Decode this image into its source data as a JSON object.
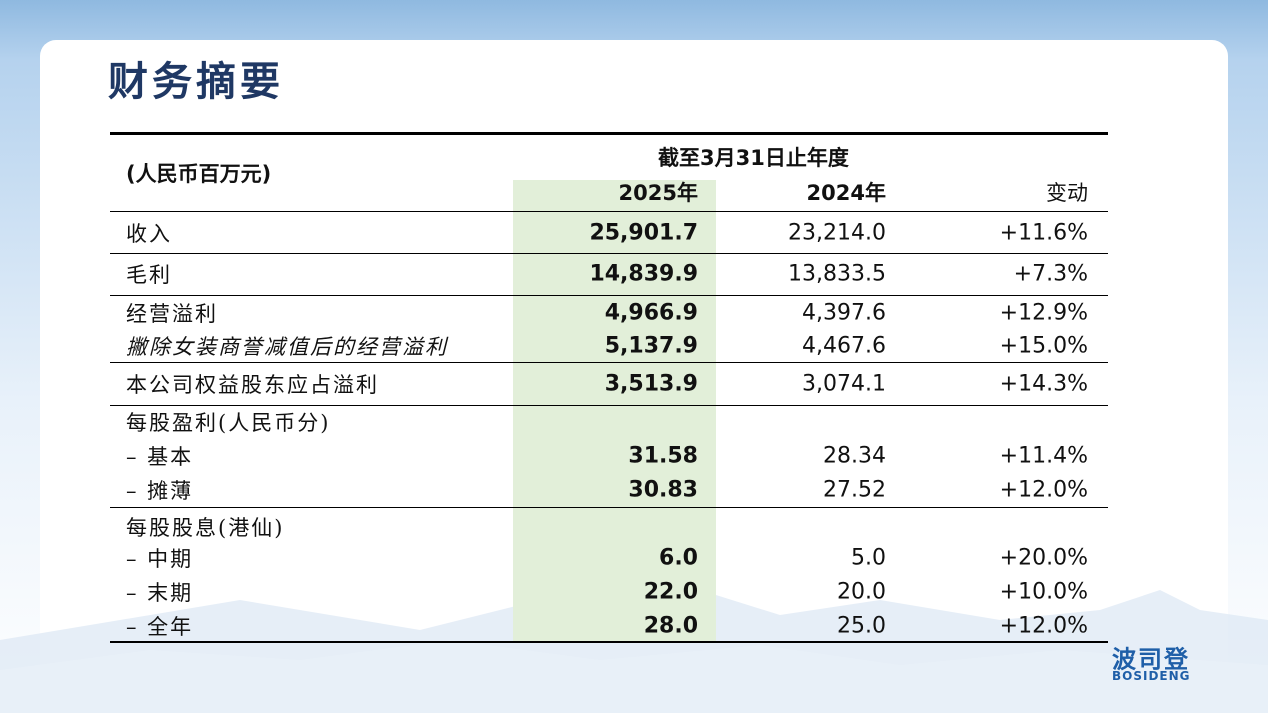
{
  "header": {
    "title": "财务摘要"
  },
  "table": {
    "unit": "(人民币百万元)",
    "period": "截至3月31日止年度",
    "columns": [
      "2025年",
      "2024年",
      "变动"
    ],
    "groups": [
      {
        "rows": [
          {
            "label": "收入",
            "values": [
              "25,901.7",
              "23,214.0",
              "+11.6%"
            ]
          }
        ]
      },
      {
        "rows": [
          {
            "label": "毛利",
            "values": [
              "14,839.9",
              "13,833.5",
              "+7.3%"
            ]
          }
        ]
      },
      {
        "rows": [
          {
            "label": "经营溢利",
            "values": [
              "4,966.9",
              "4,397.6",
              "+12.9%"
            ]
          },
          {
            "label": "撇除女装商誉减值后的经营溢利",
            "values": [
              "5,137.9",
              "4,467.6",
              "+15.0%"
            ]
          }
        ]
      },
      {
        "rows": [
          {
            "label": "本公司权益股东应占溢利",
            "values": [
              "3,513.9",
              "3,074.1",
              "+14.3%"
            ]
          }
        ]
      },
      {
        "rows": [
          {
            "label": "每股盈利(人民币分)"
          },
          {
            "label": "–  基本",
            "values": [
              "31.58",
              "28.34",
              "+11.4%"
            ]
          },
          {
            "label": "–  摊薄",
            "values": [
              "30.83",
              "27.52",
              "+12.0%"
            ]
          }
        ]
      },
      {
        "rows": [
          {
            "label": "每股股息(港仙)"
          },
          {
            "label": "–  中期",
            "values": [
              "6.0",
              "5.0",
              "+20.0%"
            ]
          },
          {
            "label": "–  末期",
            "values": [
              "22.0",
              "20.0",
              "+10.0%"
            ]
          },
          {
            "label": "–  全年",
            "values": [
              "28.0",
              "25.0",
              "+12.0%"
            ]
          }
        ]
      }
    ]
  },
  "logo": {
    "name": "波司登",
    "brand": "BOSIDENG"
  }
}
